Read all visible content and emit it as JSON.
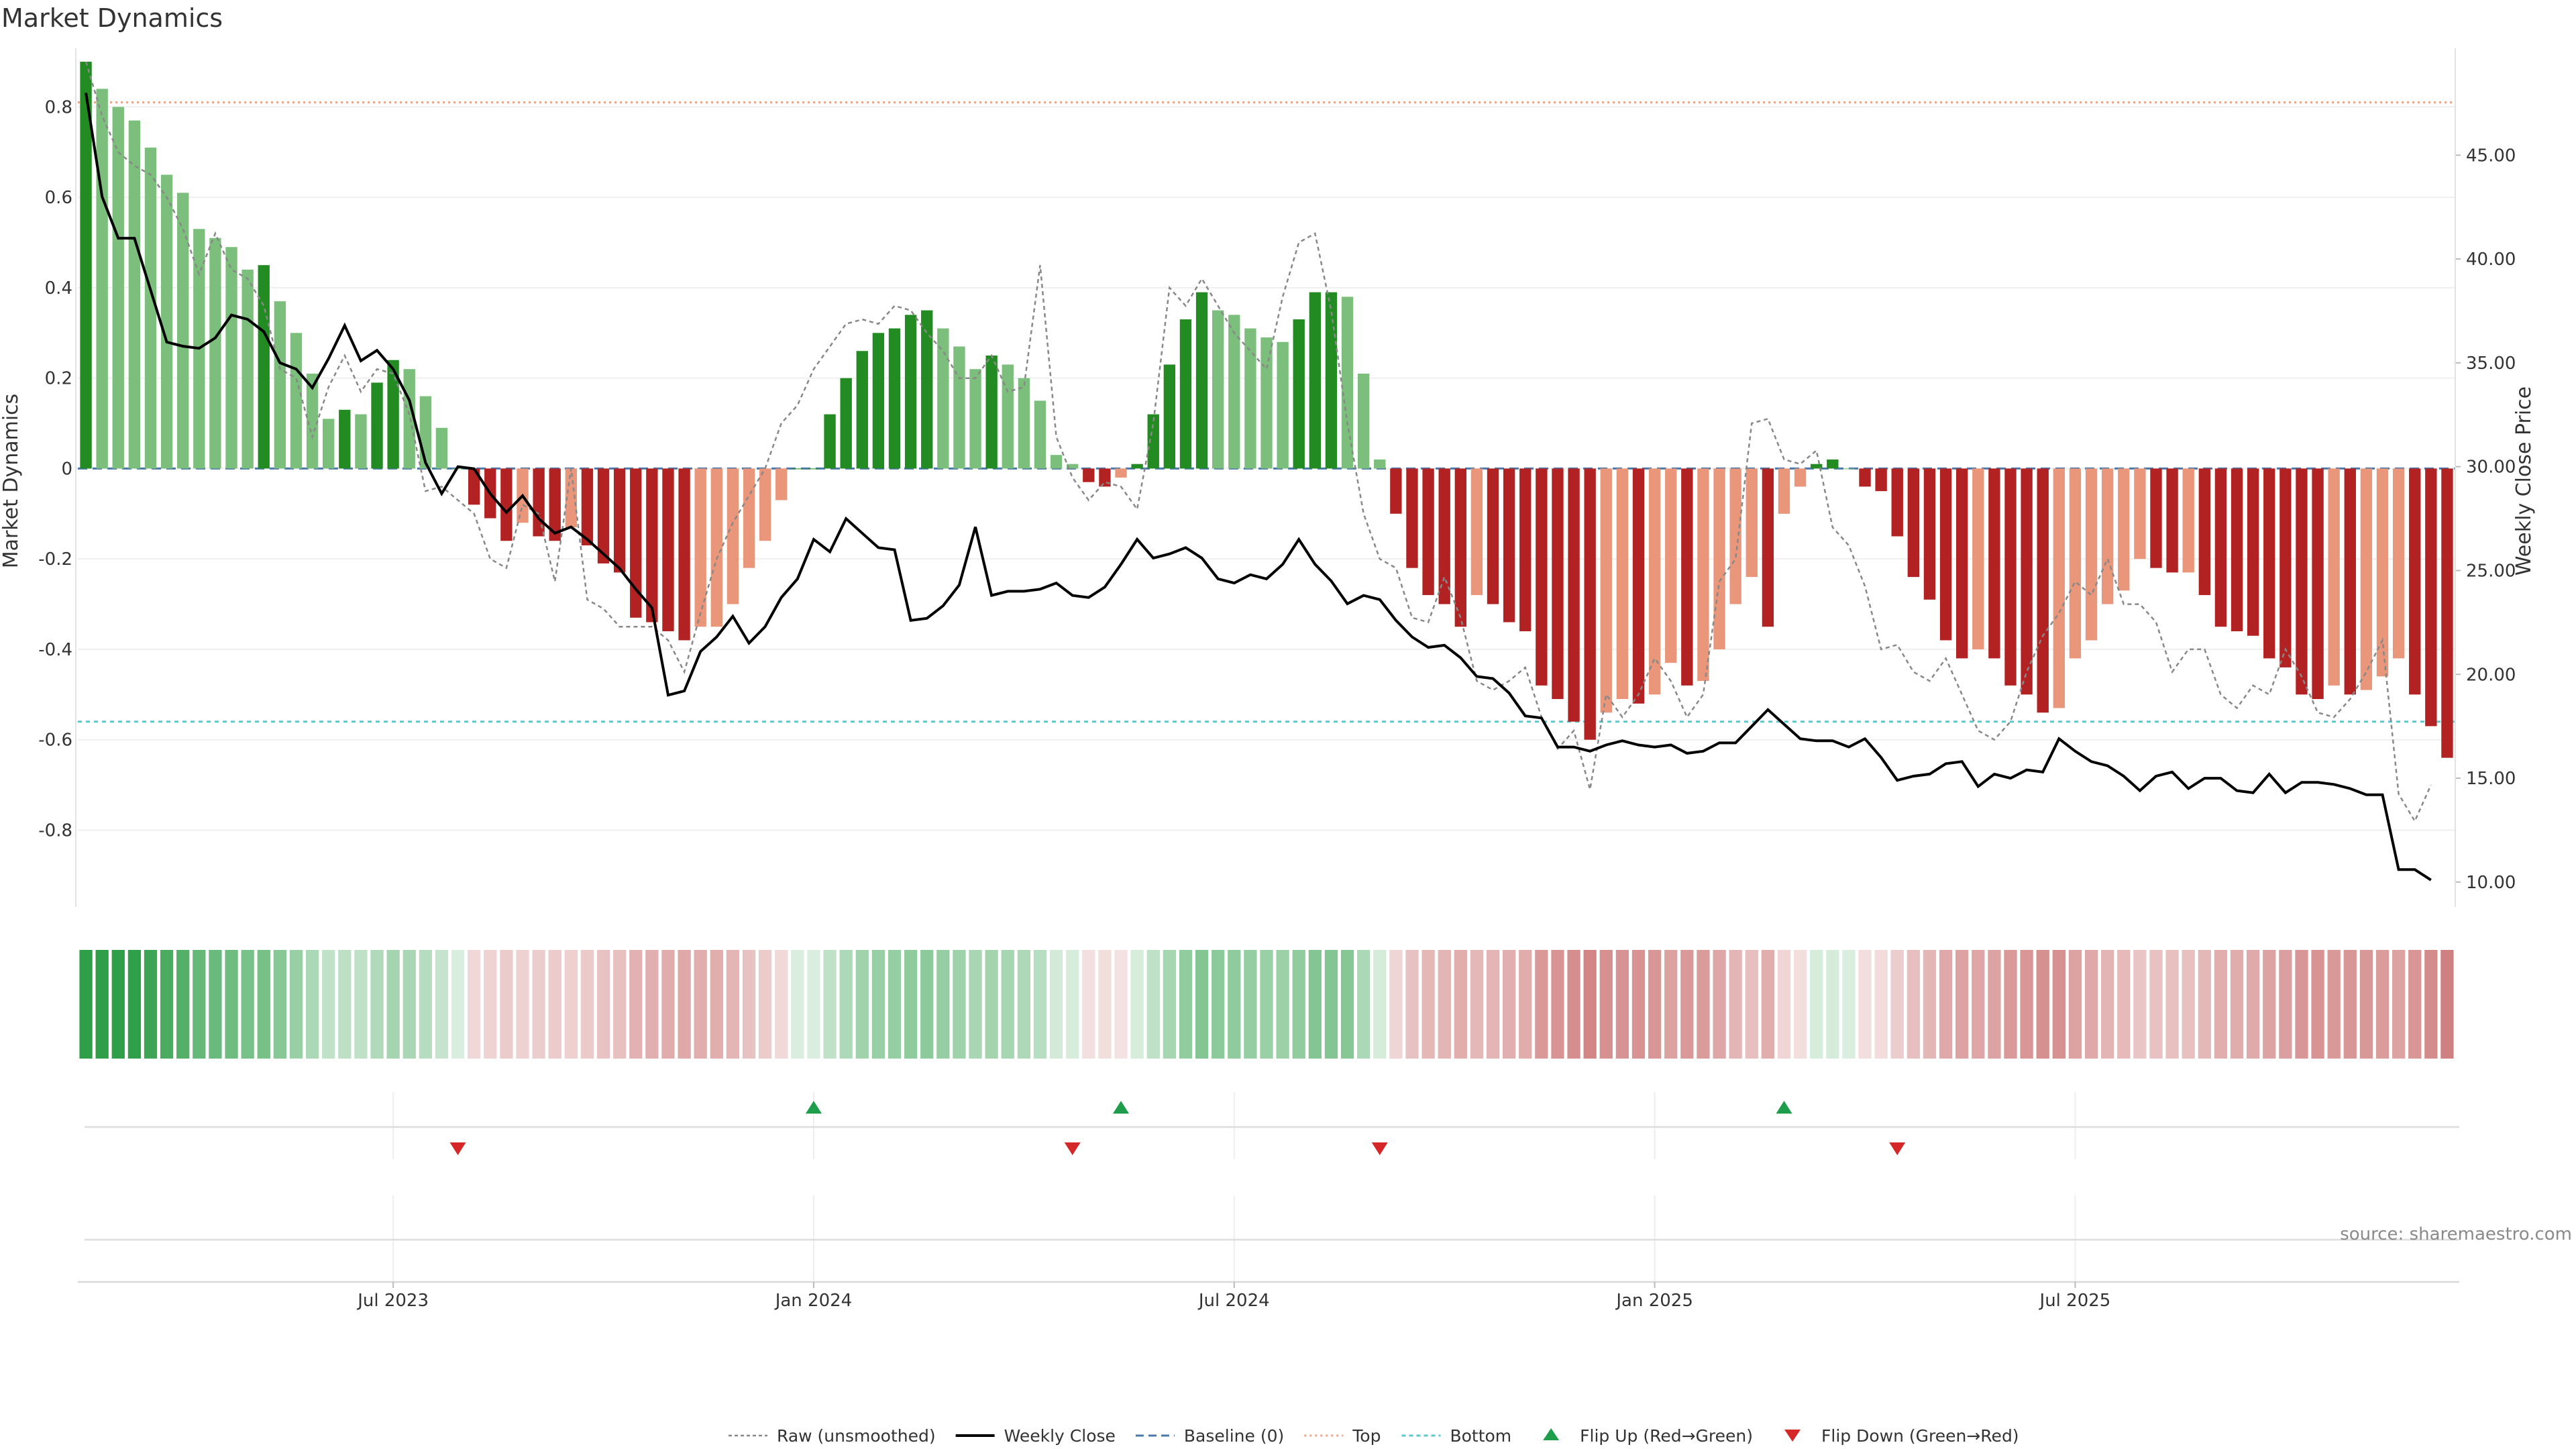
{
  "chart_data": {
    "type": "bar",
    "title": "Market Dynamics",
    "ylabel_left": "Market Dynamics",
    "ylabel_right": "Weekly Close Price",
    "ylim_left": [
      -0.97,
      0.9
    ],
    "ylim_right": [
      8.8,
      49.5
    ],
    "yticks_left": [
      -0.8,
      -0.6,
      -0.4,
      -0.2,
      0,
      0.2,
      0.4,
      0.6,
      0.8
    ],
    "yticks_right": [
      "10.00",
      "15.00",
      "20.00",
      "25.00",
      "30.00",
      "35.00",
      "40.00",
      "45.00"
    ],
    "top_level": 0.81,
    "bottom_level": -0.56,
    "x_ticks": [
      {
        "label": "Jul 2023",
        "week": 19.5
      },
      {
        "label": "Jan 2024",
        "week": 45.5
      },
      {
        "label": "Jul 2024",
        "week": 71.5
      },
      {
        "label": "Jan 2025",
        "week": 97.5
      },
      {
        "label": "Jul 2025",
        "week": 123.5
      }
    ],
    "smoothed": [
      0.9,
      0.84,
      0.8,
      0.77,
      0.71,
      0.65,
      0.61,
      0.53,
      0.51,
      0.49,
      0.44,
      0.45,
      0.37,
      0.3,
      0.21,
      0.11,
      0.13,
      0.12,
      0.19,
      0.24,
      0.22,
      0.16,
      0.09,
      0,
      -0.08,
      -0.11,
      -0.16,
      -0.12,
      -0.15,
      -0.16,
      -0.13,
      -0.17,
      -0.21,
      -0.23,
      -0.33,
      -0.34,
      -0.36,
      -0.38,
      -0.35,
      -0.35,
      -0.3,
      -0.22,
      -0.16,
      -0.07,
      0,
      0,
      0.12,
      0.2,
      0.26,
      0.3,
      0.31,
      0.34,
      0.35,
      0.31,
      0.27,
      0.22,
      0.25,
      0.23,
      0.2,
      0.15,
      0.03,
      0.01,
      -0.03,
      -0.04,
      -0.02,
      0.01,
      0.12,
      0.23,
      0.33,
      0.39,
      0.35,
      0.34,
      0.31,
      0.29,
      0.28,
      0.33,
      0.39,
      0.39,
      0.38,
      0.21,
      0.02,
      -0.1,
      -0.22,
      -0.28,
      -0.3,
      -0.35,
      -0.28,
      -0.3,
      -0.34,
      -0.36,
      -0.48,
      -0.51,
      -0.56,
      -0.6,
      -0.54,
      -0.51,
      -0.52,
      -0.5,
      -0.43,
      -0.48,
      -0.47,
      -0.4,
      -0.3,
      -0.24,
      -0.35,
      -0.1,
      -0.04,
      0.01,
      0.02,
      0,
      -0.04,
      -0.05,
      -0.15,
      -0.24,
      -0.29,
      -0.38,
      -0.42,
      -0.4,
      -0.42,
      -0.48,
      -0.5,
      -0.54,
      -0.53,
      -0.42,
      -0.38,
      -0.3,
      -0.27,
      -0.2,
      -0.22,
      -0.23,
      -0.23,
      -0.28,
      -0.35,
      -0.36,
      -0.37,
      -0.42,
      -0.44,
      -0.5,
      -0.51,
      -0.48,
      -0.5,
      -0.49,
      -0.46,
      -0.42,
      -0.5,
      -0.57,
      -0.64
    ],
    "raw": [
      0.9,
      0.78,
      0.7,
      0.67,
      0.65,
      0.6,
      0.53,
      0.43,
      0.52,
      0.44,
      0.42,
      0.36,
      0.22,
      0.2,
      0.07,
      0.18,
      0.25,
      0.17,
      0.22,
      0.21,
      0.12,
      -0.05,
      -0.04,
      -0.07,
      -0.1,
      -0.2,
      -0.22,
      -0.08,
      -0.1,
      -0.25,
      0,
      -0.29,
      -0.31,
      -0.35,
      -0.35,
      -0.35,
      -0.38,
      -0.45,
      -0.32,
      -0.2,
      -0.12,
      -0.06,
      0,
      0.1,
      0.14,
      0.22,
      0.27,
      0.32,
      0.33,
      0.32,
      0.36,
      0.35,
      0.3,
      0.26,
      0.2,
      0.2,
      0.25,
      0.17,
      0.18,
      0.45,
      0.07,
      -0.02,
      -0.07,
      -0.03,
      -0.04,
      -0.09,
      0.1,
      0.4,
      0.36,
      0.42,
      0.36,
      0.3,
      0.26,
      0.22,
      0.38,
      0.5,
      0.52,
      0.35,
      0.1,
      -0.1,
      -0.2,
      -0.22,
      -0.33,
      -0.34,
      -0.24,
      -0.33,
      -0.47,
      -0.49,
      -0.47,
      -0.44,
      -0.55,
      -0.62,
      -0.58,
      -0.71,
      -0.5,
      -0.55,
      -0.5,
      -0.42,
      -0.47,
      -0.55,
      -0.5,
      -0.25,
      -0.2,
      0.1,
      0.11,
      0.02,
      0.01,
      0.04,
      -0.13,
      -0.17,
      -0.26,
      -0.4,
      -0.39,
      -0.45,
      -0.47,
      -0.42,
      -0.5,
      -0.58,
      -0.6,
      -0.56,
      -0.45,
      -0.37,
      -0.32,
      -0.25,
      -0.28,
      -0.2,
      -0.3,
      -0.3,
      -0.34,
      -0.45,
      -0.4,
      -0.4,
      -0.5,
      -0.53,
      -0.48,
      -0.5,
      -0.4,
      -0.46,
      -0.54,
      -0.55,
      -0.51,
      -0.45,
      -0.38,
      -0.72,
      -0.78,
      -0.7
    ],
    "weekly_close": [
      48,
      43,
      41,
      41,
      38.5,
      36,
      35.8,
      35.7,
      36.2,
      37.3,
      37.1,
      36.5,
      35,
      34.7,
      33.8,
      35.2,
      36.8,
      35.1,
      35.6,
      34.7,
      33.2,
      30.2,
      28.7,
      30,
      29.9,
      28.7,
      27.8,
      28.6,
      27.5,
      26.8,
      27.1,
      26.5,
      25.8,
      25.1,
      24.1,
      23.2,
      19,
      19.2,
      21.1,
      21.8,
      22.8,
      21.5,
      22.3,
      23.7,
      24.6,
      26.5,
      25.9,
      27.5,
      26.8,
      26.1,
      26,
      22.6,
      22.7,
      23.3,
      24.3,
      27.1,
      23.8,
      24,
      24,
      24.1,
      24.4,
      23.8,
      23.7,
      24.2,
      25.3,
      26.5,
      25.6,
      25.8,
      26.1,
      25.6,
      24.6,
      24.4,
      24.8,
      24.6,
      25.3,
      26.5,
      25.3,
      24.5,
      23.4,
      23.8,
      23.6,
      22.6,
      21.8,
      21.3,
      21.4,
      20.8,
      19.9,
      19.8,
      19.1,
      18,
      17.9,
      16.5,
      16.5,
      16.3,
      16.6,
      16.8,
      16.6,
      16.5,
      16.6,
      16.2,
      16.3,
      16.7,
      16.7,
      17.5,
      18.3,
      17.6,
      16.9,
      16.8,
      16.8,
      16.5,
      16.9,
      16,
      14.9,
      15.1,
      15.2,
      15.7,
      15.8,
      14.6,
      15.2,
      15,
      15.4,
      15.3,
      16.9,
      16.3,
      15.8,
      15.6,
      15.1,
      14.4,
      15.1,
      15.3,
      14.5,
      15,
      15,
      14.4,
      14.3,
      15.2,
      14.3,
      14.8,
      14.8,
      14.7,
      14.5,
      14.2,
      14.2,
      10.6,
      10.6,
      10.1
    ],
    "flip_up_weeks": [
      45,
      64,
      105
    ],
    "flip_down_weeks": [
      23,
      61,
      80,
      112
    ],
    "legend": [
      {
        "key": "raw",
        "label": "Raw (unsmoothed)"
      },
      {
        "key": "close",
        "label": "Weekly Close"
      },
      {
        "key": "base",
        "label": "Baseline (0)"
      },
      {
        "key": "top",
        "label": "Top"
      },
      {
        "key": "bottom",
        "label": "Bottom"
      },
      {
        "key": "up",
        "label": "Flip Up (Red→Green)"
      },
      {
        "key": "down",
        "label": "Flip Down (Green→Red)"
      }
    ]
  },
  "source": "source: sharemaestro.com",
  "colors": {
    "dark_green": "#228B22",
    "light_green": "#7CBF7C",
    "dark_red": "#B22222",
    "light_red": "#E9967A",
    "close_line": "#000000",
    "raw_line": "#888888",
    "baseline": "#4A78A8",
    "top": "#E8A58A",
    "bottom": "#5CC8CC",
    "up_marker": "#1E9E4A",
    "down_marker": "#D62728"
  }
}
